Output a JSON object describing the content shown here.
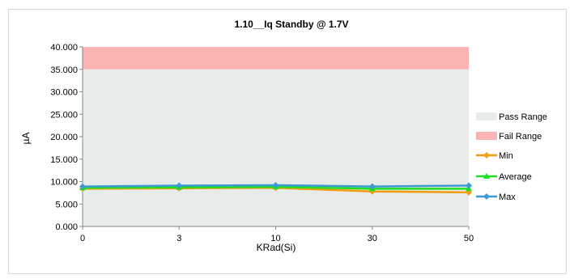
{
  "chart_data": {
    "type": "line",
    "title": "1.10__Iq Standby @ 1.7V",
    "xlabel": "KRad(Si)",
    "ylabel": "µA",
    "categories": [
      "0",
      "3",
      "10",
      "30",
      "50"
    ],
    "ylim": [
      0,
      40
    ],
    "yticks": [
      "0.000",
      "5.000",
      "10.000",
      "15.000",
      "20.000",
      "25.000",
      "30.000",
      "35.000",
      "40.000"
    ],
    "bands": [
      {
        "name": "Pass Range",
        "from": 0,
        "to": 35,
        "color": "#e7ecea"
      },
      {
        "name": "Fail Range",
        "from": 35,
        "to": 40,
        "color": "#fbb4b4"
      }
    ],
    "series": [
      {
        "name": "Min",
        "values": [
          8.4,
          8.5,
          8.6,
          7.8,
          7.6
        ],
        "color": "#f39c12",
        "marker": "diamond"
      },
      {
        "name": "Average",
        "values": [
          8.6,
          8.7,
          8.8,
          8.4,
          8.4
        ],
        "color": "#22dd22",
        "marker": "triangle"
      },
      {
        "name": "Max",
        "values": [
          8.9,
          9.1,
          9.2,
          8.9,
          9.1
        ],
        "color": "#3b9bd1",
        "marker": "diamond"
      }
    ],
    "legend_position": "right",
    "grid": false
  }
}
